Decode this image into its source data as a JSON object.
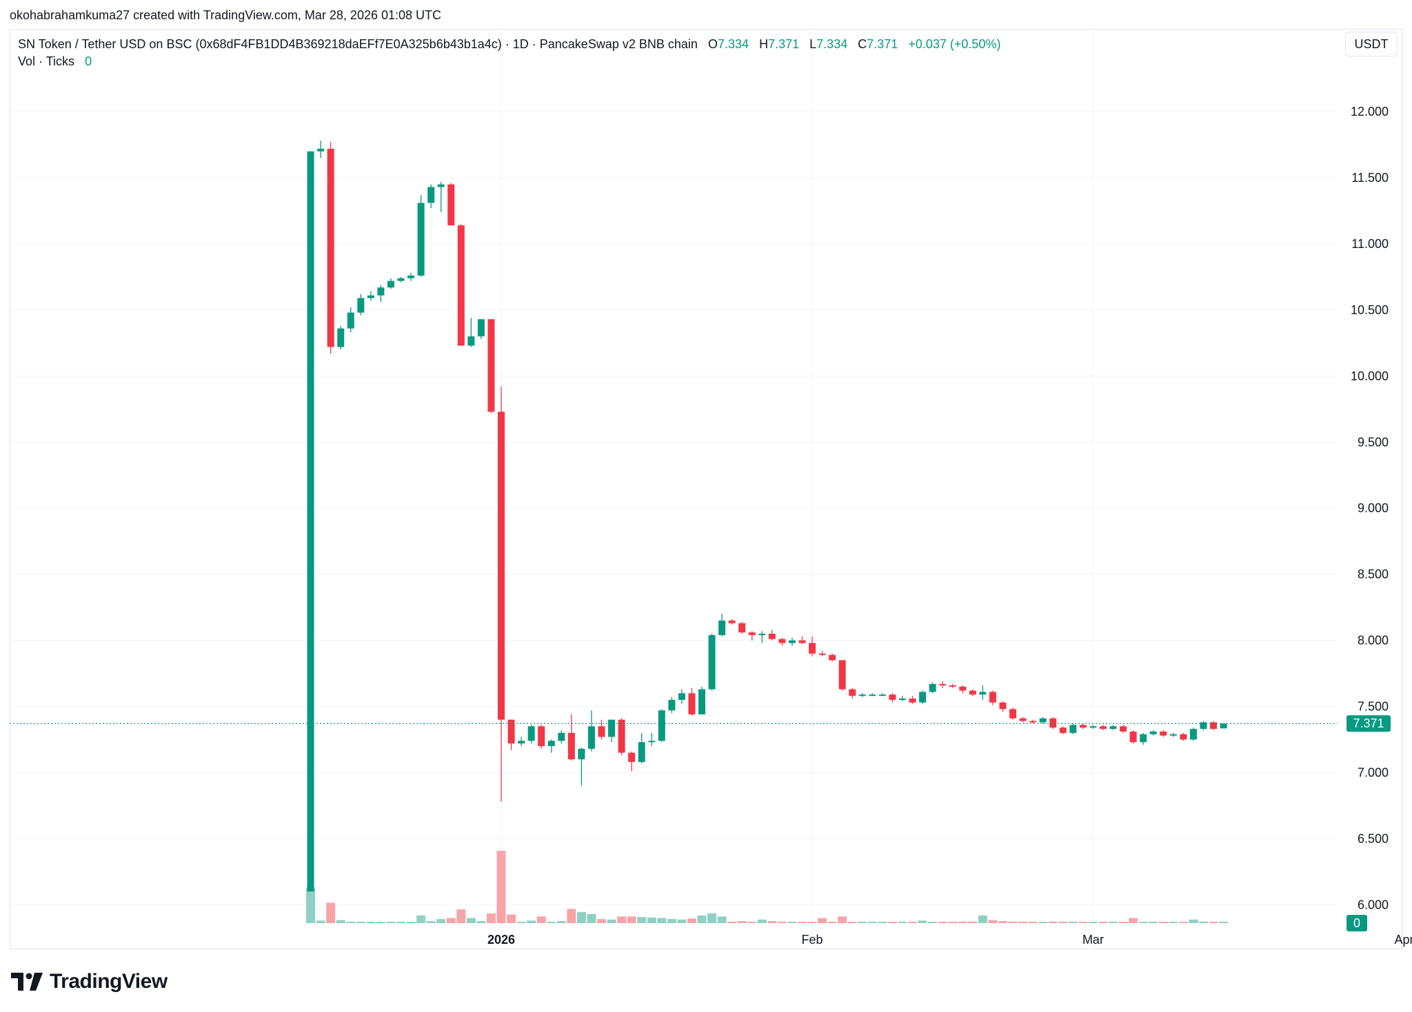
{
  "header": {
    "attribution": "okohabrahamkuma27 created with TradingView.com, Mar 28, 2026 01:08 UTC"
  },
  "legend": {
    "symbol": "SN Token / Tether USD on BSC (0x68dF4FB1DD4B369218daEFf7E0A325b6b43b1a4c) · 1D · PancakeSwap v2 BNB chain",
    "o_label": "O",
    "o_value": "7.334",
    "h_label": "H",
    "h_value": "7.371",
    "l_label": "L",
    "l_value": "7.334",
    "c_label": "C",
    "c_value": "7.371",
    "change": "+0.037 (+0.50%)",
    "vol_label": "Vol · Ticks",
    "vol_value": "0"
  },
  "currency_button": "USDT",
  "branding": {
    "logo_text": "TradingView"
  },
  "colors": {
    "up": "#089981",
    "down": "#f23645",
    "vol_up": "#8fd0c4",
    "vol_down": "#f7a4a8",
    "grid": "#f0f3fa"
  },
  "chart_data": {
    "type": "candlestick",
    "ylim": [
      5.6,
      12.35
    ],
    "y_ticks": [
      "12.000",
      "11.500",
      "11.000",
      "10.500",
      "10.000",
      "9.500",
      "9.000",
      "8.500",
      "8.000",
      "7.500",
      "7.000",
      "6.500",
      "6.000"
    ],
    "x_ticks": [
      {
        "label": "2026",
        "date": "2026-01-01",
        "bold": true
      },
      {
        "label": "Feb",
        "date": "2026-02-01",
        "bold": false
      },
      {
        "label": "Mar",
        "date": "2026-03-01",
        "bold": false
      },
      {
        "label": "Apr",
        "date": "2026-04-01",
        "bold": false
      }
    ],
    "last_price_label": "7.371",
    "last_volume_label": "0",
    "candles": [
      {
        "date": "2025-12-13",
        "o": 6.1,
        "h": 11.7,
        "l": 6.1,
        "c": 11.7,
        "v": 0.7
      },
      {
        "date": "2025-12-14",
        "o": 11.7,
        "h": 11.78,
        "l": 11.65,
        "c": 11.72,
        "v": 0.05
      },
      {
        "date": "2025-12-15",
        "o": 11.72,
        "h": 11.77,
        "l": 10.17,
        "c": 10.22,
        "v": 0.4
      },
      {
        "date": "2025-12-16",
        "o": 10.22,
        "h": 10.38,
        "l": 10.2,
        "c": 10.36,
        "v": 0.06
      },
      {
        "date": "2025-12-17",
        "o": 10.36,
        "h": 10.52,
        "l": 10.33,
        "c": 10.48,
        "v": 0.03
      },
      {
        "date": "2025-12-18",
        "o": 10.48,
        "h": 10.62,
        "l": 10.46,
        "c": 10.59,
        "v": 0.02
      },
      {
        "date": "2025-12-19",
        "o": 10.59,
        "h": 10.64,
        "l": 10.57,
        "c": 10.61,
        "v": 0.02
      },
      {
        "date": "2025-12-20",
        "o": 10.61,
        "h": 10.69,
        "l": 10.56,
        "c": 10.67,
        "v": 0.015
      },
      {
        "date": "2025-12-21",
        "o": 10.67,
        "h": 10.74,
        "l": 10.66,
        "c": 10.72,
        "v": 0.015
      },
      {
        "date": "2025-12-22",
        "o": 10.72,
        "h": 10.75,
        "l": 10.71,
        "c": 10.74,
        "v": 0.015
      },
      {
        "date": "2025-12-23",
        "o": 10.74,
        "h": 10.78,
        "l": 10.72,
        "c": 10.76,
        "v": 0.02
      },
      {
        "date": "2025-12-24",
        "o": 10.76,
        "h": 11.37,
        "l": 10.75,
        "c": 11.31,
        "v": 0.15
      },
      {
        "date": "2025-12-25",
        "o": 11.31,
        "h": 11.45,
        "l": 11.27,
        "c": 11.43,
        "v": 0.04
      },
      {
        "date": "2025-12-26",
        "o": 11.43,
        "h": 11.47,
        "l": 11.24,
        "c": 11.45,
        "v": 0.08
      },
      {
        "date": "2025-12-27",
        "o": 11.45,
        "h": 11.46,
        "l": 11.14,
        "c": 11.14,
        "v": 0.1
      },
      {
        "date": "2025-12-28",
        "o": 11.14,
        "h": 11.15,
        "l": 10.23,
        "c": 10.23,
        "v": 0.27
      },
      {
        "date": "2025-12-29",
        "o": 10.23,
        "h": 10.44,
        "l": 10.22,
        "c": 10.3,
        "v": 0.1
      },
      {
        "date": "2025-12-30",
        "o": 10.3,
        "h": 10.43,
        "l": 10.28,
        "c": 10.43,
        "v": 0.04
      },
      {
        "date": "2025-12-31",
        "o": 10.43,
        "h": 10.43,
        "l": 9.72,
        "c": 9.73,
        "v": 0.19
      },
      {
        "date": "2026-01-01",
        "o": 9.73,
        "h": 9.92,
        "l": 6.78,
        "c": 7.4,
        "v": 1.42
      },
      {
        "date": "2026-01-02",
        "o": 7.4,
        "h": 7.4,
        "l": 7.17,
        "c": 7.22,
        "v": 0.17
      },
      {
        "date": "2026-01-03",
        "o": 7.22,
        "h": 7.27,
        "l": 7.2,
        "c": 7.24,
        "v": 0.02
      },
      {
        "date": "2026-01-04",
        "o": 7.24,
        "h": 7.36,
        "l": 7.22,
        "c": 7.35,
        "v": 0.05
      },
      {
        "date": "2026-01-05",
        "o": 7.35,
        "h": 7.36,
        "l": 7.18,
        "c": 7.2,
        "v": 0.13
      },
      {
        "date": "2026-01-06",
        "o": 7.2,
        "h": 7.25,
        "l": 7.15,
        "c": 7.24,
        "v": 0.02
      },
      {
        "date": "2026-01-07",
        "o": 7.24,
        "h": 7.32,
        "l": 7.22,
        "c": 7.3,
        "v": 0.04
      },
      {
        "date": "2026-01-08",
        "o": 7.3,
        "h": 7.44,
        "l": 7.09,
        "c": 7.1,
        "v": 0.28
      },
      {
        "date": "2026-01-09",
        "o": 7.1,
        "h": 7.19,
        "l": 6.9,
        "c": 7.18,
        "v": 0.22
      },
      {
        "date": "2026-01-10",
        "o": 7.18,
        "h": 7.47,
        "l": 7.16,
        "c": 7.35,
        "v": 0.18
      },
      {
        "date": "2026-01-11",
        "o": 7.35,
        "h": 7.4,
        "l": 7.25,
        "c": 7.27,
        "v": 0.08
      },
      {
        "date": "2026-01-12",
        "o": 7.27,
        "h": 7.4,
        "l": 7.23,
        "c": 7.4,
        "v": 0.07
      },
      {
        "date": "2026-01-13",
        "o": 7.4,
        "h": 7.41,
        "l": 7.13,
        "c": 7.15,
        "v": 0.13
      },
      {
        "date": "2026-01-14",
        "o": 7.15,
        "h": 7.16,
        "l": 7.01,
        "c": 7.08,
        "v": 0.13
      },
      {
        "date": "2026-01-15",
        "o": 7.08,
        "h": 7.3,
        "l": 7.07,
        "c": 7.23,
        "v": 0.12
      },
      {
        "date": "2026-01-16",
        "o": 7.23,
        "h": 7.3,
        "l": 7.2,
        "c": 7.24,
        "v": 0.11
      },
      {
        "date": "2026-01-17",
        "o": 7.24,
        "h": 7.48,
        "l": 7.23,
        "c": 7.47,
        "v": 0.1
      },
      {
        "date": "2026-01-18",
        "o": 7.47,
        "h": 7.57,
        "l": 7.45,
        "c": 7.55,
        "v": 0.08
      },
      {
        "date": "2026-01-19",
        "o": 7.55,
        "h": 7.63,
        "l": 7.52,
        "c": 7.6,
        "v": 0.07
      },
      {
        "date": "2026-01-20",
        "o": 7.6,
        "h": 7.64,
        "l": 7.43,
        "c": 7.44,
        "v": 0.09
      },
      {
        "date": "2026-01-21",
        "o": 7.44,
        "h": 7.65,
        "l": 7.44,
        "c": 7.63,
        "v": 0.15
      },
      {
        "date": "2026-01-22",
        "o": 7.63,
        "h": 8.05,
        "l": 7.62,
        "c": 8.04,
        "v": 0.19
      },
      {
        "date": "2026-01-23",
        "o": 8.04,
        "h": 8.2,
        "l": 8.03,
        "c": 8.15,
        "v": 0.13
      },
      {
        "date": "2026-01-24",
        "o": 8.15,
        "h": 8.16,
        "l": 8.12,
        "c": 8.13,
        "v": 0.02
      },
      {
        "date": "2026-01-25",
        "o": 8.13,
        "h": 8.14,
        "l": 8.05,
        "c": 8.06,
        "v": 0.04
      },
      {
        "date": "2026-01-26",
        "o": 8.06,
        "h": 8.07,
        "l": 8.0,
        "c": 8.04,
        "v": 0.02
      },
      {
        "date": "2026-01-27",
        "o": 8.04,
        "h": 8.07,
        "l": 7.98,
        "c": 8.05,
        "v": 0.07
      },
      {
        "date": "2026-01-28",
        "o": 8.05,
        "h": 8.08,
        "l": 8.0,
        "c": 8.01,
        "v": 0.04
      },
      {
        "date": "2026-01-29",
        "o": 8.01,
        "h": 8.02,
        "l": 7.96,
        "c": 7.98,
        "v": 0.02
      },
      {
        "date": "2026-01-30",
        "o": 7.98,
        "h": 8.02,
        "l": 7.96,
        "c": 8.0,
        "v": 0.02
      },
      {
        "date": "2026-01-31",
        "o": 8.0,
        "h": 8.03,
        "l": 7.97,
        "c": 7.98,
        "v": 0.02
      },
      {
        "date": "2026-02-01",
        "o": 7.98,
        "h": 8.03,
        "l": 7.88,
        "c": 7.9,
        "v": 0.02
      },
      {
        "date": "2026-02-02",
        "o": 7.9,
        "h": 7.92,
        "l": 7.88,
        "c": 7.89,
        "v": 0.1
      },
      {
        "date": "2026-02-03",
        "o": 7.89,
        "h": 7.9,
        "l": 7.84,
        "c": 7.85,
        "v": 0.02
      },
      {
        "date": "2026-02-04",
        "o": 7.85,
        "h": 7.85,
        "l": 7.62,
        "c": 7.63,
        "v": 0.13
      },
      {
        "date": "2026-02-05",
        "o": 7.63,
        "h": 7.64,
        "l": 7.56,
        "c": 7.58,
        "v": 0.02
      },
      {
        "date": "2026-02-06",
        "o": 7.58,
        "h": 7.6,
        "l": 7.57,
        "c": 7.59,
        "v": 0.01
      },
      {
        "date": "2026-02-07",
        "o": 7.59,
        "h": 7.6,
        "l": 7.58,
        "c": 7.59,
        "v": 0.01
      },
      {
        "date": "2026-02-08",
        "o": 7.59,
        "h": 7.6,
        "l": 7.58,
        "c": 7.59,
        "v": 0.01
      },
      {
        "date": "2026-02-09",
        "o": 7.59,
        "h": 7.6,
        "l": 7.53,
        "c": 7.55,
        "v": 0.02
      },
      {
        "date": "2026-02-10",
        "o": 7.55,
        "h": 7.58,
        "l": 7.54,
        "c": 7.56,
        "v": 0.02
      },
      {
        "date": "2026-02-11",
        "o": 7.56,
        "h": 7.58,
        "l": 7.52,
        "c": 7.53,
        "v": 0.01
      },
      {
        "date": "2026-02-12",
        "o": 7.53,
        "h": 7.62,
        "l": 7.52,
        "c": 7.61,
        "v": 0.05
      },
      {
        "date": "2026-02-13",
        "o": 7.61,
        "h": 7.68,
        "l": 7.6,
        "c": 7.67,
        "v": 0.02
      },
      {
        "date": "2026-02-14",
        "o": 7.67,
        "h": 7.69,
        "l": 7.64,
        "c": 7.66,
        "v": 0.01
      },
      {
        "date": "2026-02-15",
        "o": 7.66,
        "h": 7.67,
        "l": 7.64,
        "c": 7.65,
        "v": 0.01
      },
      {
        "date": "2026-02-16",
        "o": 7.65,
        "h": 7.66,
        "l": 7.6,
        "c": 7.62,
        "v": 0.03
      },
      {
        "date": "2026-02-17",
        "o": 7.62,
        "h": 7.63,
        "l": 7.58,
        "c": 7.59,
        "v": 0.03
      },
      {
        "date": "2026-02-18",
        "o": 7.59,
        "h": 7.66,
        "l": 7.55,
        "c": 7.61,
        "v": 0.15
      },
      {
        "date": "2026-02-19",
        "o": 7.61,
        "h": 7.62,
        "l": 7.51,
        "c": 7.53,
        "v": 0.06
      },
      {
        "date": "2026-02-20",
        "o": 7.53,
        "h": 7.54,
        "l": 7.46,
        "c": 7.48,
        "v": 0.04
      },
      {
        "date": "2026-02-21",
        "o": 7.48,
        "h": 7.49,
        "l": 7.4,
        "c": 7.41,
        "v": 0.03
      },
      {
        "date": "2026-02-22",
        "o": 7.41,
        "h": 7.42,
        "l": 7.38,
        "c": 7.39,
        "v": 0.02
      },
      {
        "date": "2026-02-23",
        "o": 7.39,
        "h": 7.4,
        "l": 7.37,
        "c": 7.38,
        "v": 0.01
      },
      {
        "date": "2026-02-24",
        "o": 7.38,
        "h": 7.42,
        "l": 7.37,
        "c": 7.41,
        "v": 0.01
      },
      {
        "date": "2026-02-25",
        "o": 7.41,
        "h": 7.42,
        "l": 7.33,
        "c": 7.34,
        "v": 0.03
      },
      {
        "date": "2026-02-26",
        "o": 7.34,
        "h": 7.35,
        "l": 7.29,
        "c": 7.3,
        "v": 0.02
      },
      {
        "date": "2026-02-27",
        "o": 7.3,
        "h": 7.37,
        "l": 7.29,
        "c": 7.36,
        "v": 0.02
      },
      {
        "date": "2026-02-28",
        "o": 7.36,
        "h": 7.37,
        "l": 7.33,
        "c": 7.34,
        "v": 0.02
      },
      {
        "date": "2026-03-01",
        "o": 7.34,
        "h": 7.36,
        "l": 7.33,
        "c": 7.35,
        "v": 0.01
      },
      {
        "date": "2026-03-02",
        "o": 7.35,
        "h": 7.36,
        "l": 7.32,
        "c": 7.33,
        "v": 0.02
      },
      {
        "date": "2026-03-03",
        "o": 7.33,
        "h": 7.36,
        "l": 7.32,
        "c": 7.35,
        "v": 0.01
      },
      {
        "date": "2026-03-04",
        "o": 7.35,
        "h": 7.36,
        "l": 7.3,
        "c": 7.31,
        "v": 0.02
      },
      {
        "date": "2026-03-05",
        "o": 7.31,
        "h": 7.32,
        "l": 7.22,
        "c": 7.23,
        "v": 0.1
      },
      {
        "date": "2026-03-06",
        "o": 7.23,
        "h": 7.3,
        "l": 7.21,
        "c": 7.29,
        "v": 0.02
      },
      {
        "date": "2026-03-07",
        "o": 7.29,
        "h": 7.32,
        "l": 7.28,
        "c": 7.31,
        "v": 0.02
      },
      {
        "date": "2026-03-08",
        "o": 7.31,
        "h": 7.32,
        "l": 7.27,
        "c": 7.28,
        "v": 0.01
      },
      {
        "date": "2026-03-09",
        "o": 7.28,
        "h": 7.3,
        "l": 7.27,
        "c": 7.29,
        "v": 0.01
      },
      {
        "date": "2026-03-10",
        "o": 7.29,
        "h": 7.3,
        "l": 7.24,
        "c": 7.25,
        "v": 0.01
      },
      {
        "date": "2026-03-11",
        "o": 7.25,
        "h": 7.34,
        "l": 7.24,
        "c": 7.33,
        "v": 0.07
      },
      {
        "date": "2026-03-12",
        "o": 7.33,
        "h": 7.39,
        "l": 7.32,
        "c": 7.38,
        "v": 0.03
      },
      {
        "date": "2026-03-13",
        "o": 7.38,
        "h": 7.39,
        "l": 7.32,
        "c": 7.33,
        "v": 0.02
      },
      {
        "date": "2026-03-14",
        "o": 7.334,
        "h": 7.371,
        "l": 7.334,
        "c": 7.371,
        "v": 0.01
      }
    ]
  }
}
